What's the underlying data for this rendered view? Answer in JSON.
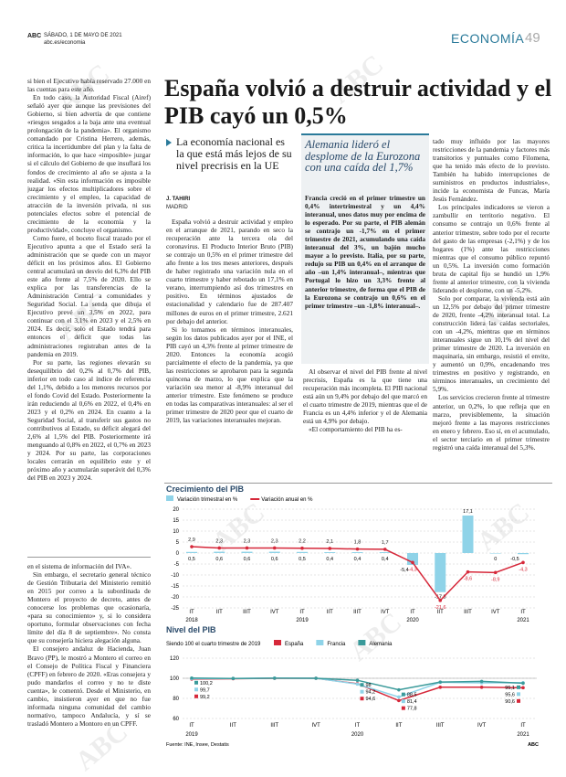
{
  "header": {
    "logo": "ABC",
    "date": "SÁBADO, 1 DE MAYO DE 2021",
    "url": "abc.es/economia",
    "section": "ECONOMÍA",
    "page": "49"
  },
  "watermark": "ABC",
  "sidebar_top": {
    "paragraphs": [
      "si bien el Ejecutivo había reservado 27.000 en las cuentas para este año.",
      "En todo caso, la Autoridad Fiscal (Airef) señaló ayer que aunque las previsiones del Gobierno, si bien advertía de que contiene «riesgos sesgados a la baja ante una eventual prolongación de la pandemia». El organismo comandado por Cristina Herrero, además, critica la incertidumbre del plan y la falta de información, lo que hace «imposible» juzgar si el cálculo del Gobierno de que insuflará los fondos de crecimiento al año se ajusta a la realidad. «Sin esta información es imposible juzgar los efectos multiplicadores sobre el crecimiento y el empleo, la capacidad de atracción de la inversión privada, ni sus potenciales efectos sobre el potencial de crecimiento de la economía y la productividad», concluye el organismo.",
      "Como fuere, el boceto fiscal trazado por el Ejecutivo apunta a que el Estado será la administración que se quede con un mayor déficit en los próximos años. El Gobierno central acumulará un desvío del 6,3% del PIB este año frente al 7,5% de 2020. Ello se explica por las transferencias de la Administración Central a comunidades y Seguridad Social. La senda que dibuja el Ejecutivo prevé un 3,5% en 2022, para continuar con el 3,1% en 2023 y el 2,5% en 2024. Es decir, solo el Estado tendrá para entonces el déficit que todas las administraciones registraban antes de la pandemia en 2019.",
      "Por su parte, las regiones elevarán su desequilibrio del 0,2% al 0,7% del PIB, inferior en todo caso al índice de referencia del 1,1%, debido a los menores recursos por el fondo Covid del Estado. Posteriormente la irán reduciendo al 0,6% en 2022, el 0,4% en 2023 y el 0,2% en 2024. En cuanto a la Seguridad Social, al transferir sus gastos no contributivos al Estado, su déficit alegará del 2,6% al 1,5% del PIB. Posteriormente irá menguando al 0,8% en 2022, el 0,7% en 2023 y 2024. Por su parte, las corporaciones locales cerrarán en equilibrio este y el próximo año y acumularán superávit del 0,3% del PIB en 2023 y 2024."
    ]
  },
  "sidebar_bottom": {
    "paragraphs": [
      "en el sistema de información del IVA».",
      "Sin embargo, el secretario general técnico de Gestión Tributaria del Ministerio remitió en 2015 por correo a la subordinada de Montero el proyecto de decreto, antes de conocerse los problemas que ocasionaría, «para su conocimiento» y, si lo considera oportuno, formular observaciones con fecha límite del día 8 de septiembre». No consta que su consejería hiciera alegación alguna.",
      "El consejero andaluz de Hacienda, Juan Bravo (PP), le mostró a Montero el correo en el Consejo de Política Fiscal y Financiera (CPFF) en febrero de 2020. «Eras consejera y pudo mandarlos el correo y no te diste cuenta», le comentó. Desde el Ministerio, en cambio, insistieron ayer en que no fue informada ninguna comunidad del cambio normativo, tampoco Andalucía, y sí se trasladó Montero a Montoro en un CPFF."
    ]
  },
  "article": {
    "headline": "España volvió a destruir actividad y el PIB cayó un 0,5%",
    "subheadline": "La economía nacional es la que está más lejos de su nivel precrisis en la UE",
    "author": "J. TAHIRI",
    "location": "MADRID",
    "columns": [
      [
        "España volvió a destruir actividad y empleo en el arranque de 2021, parando en seco la recuperación ante la tercera ola del coronavirus. El Producto Interior Bruto (PIB) se contrajo un 0,5% en el primer trimestre del año frente a los tres meses anteriores, después de haber registrado una variación nula en el cuarto trimestre y haber rebotado un 17,1% en verano, interrumpiendo así dos trimestres en positivo. En términos ajustados de estacionalidad y calendario fue de 287.407 millones de euros en el primer trimestre, 2.621 por debajo del anterior.",
        "Si lo tomamos en términos interanuales, según los datos publicados ayer por el INE, el PIB cayó un 4,3% frente al primer trimestre de 2020. Entonces la economía acogió parcialmente el efecto de la pandemia, ya que las restricciones se aprobaron para la segunda quincena de marzo, lo que explica que la variación sea menor al -8,9% interanual del anterior trimestre. Este fenómeno se produce en todas las comparativas interanuales: al ser el primer trimestre de 2020 peor que el cuarto de 2019, las variaciones interanuales mejoran."
      ],
      [
        "Al observar el nivel del PIB frente al nivel precrisis, España es la que tiene una recuperación más incompleta. El PIB nacional está aún un 9,4% por debajo del que marcó en el cuarto trimestre de 2019, mientras que el de Francia es un 4,4% inferior y el de Alemania está un 4,9% por debajo.",
        "«El comportamiento del PIB ha es-"
      ],
      [
        "tado muy influido por las mayores restricciones de la pandemia y factores más transitorios y puntuales como Filomena, que ha tenido más efecto de lo previsto. También ha habido interrupciones de suministros en productos industriales», incide la economista de Funcas, María Jesús Fernández.",
        "Los principales indicadores se vieron a zambullir en territorio negativo. El consumo se contrajo un 0,6% frente al anterior trimestre, sobre todo por el recorte del gasto de las empresas (-2,1%) y de los hogares (1%) ante las restricciones mientras que el consumo público repuntó un 0,5%. La inversión como formación bruta de capital fijo se hundió un 1,9% frente al anterior trimestre, con la vivienda liderando el desplome, con un -5,2%.",
        "Solo por comparar, la vivienda está aún un 12,5% por debajo del primer trimestre de 2020, frente -4,2% interanual total. La construcción lidera las caídas sectoriales, con un -4,2%, mientras que en términos interanuales sigue un 10,1% del nivel del primer trimestre de 2020. La inversión en maquinaria, sin embargo, resistió el envite, y aumentó un 0,9%, encadenando tres trimestres en positivo y registrando, en términos interanuales, un crecimiento del 5,9%.",
        "Los servicios crecieron frente al trimestre anterior, un 0,2%, lo que refleja que en marzo, previsiblemente, la situación mejoró frente a las mayores restricciones en enero y febrero. Eso sí, en el acumulado, el sector terciario en el primer trimestre registró una caída interanual del 5,3%."
      ]
    ]
  },
  "box": {
    "title": "Alemania lideró el desplome de la Eurozona con una caída del 1,7%",
    "text": "Francia creció en el primer trimestre un 0,4% intertrimestral y un 4,4% interanual, unos datos muy por encima de lo esperado. Por su parte, el PIB alemán se contrajo un -1,7% en el primer trimestre de 2021, acumulando una caída interanual del 3%, un bajón mucho mayor a lo previsto. Italia, por su parte, redujo su PIB un 0,4% en el arranque de año –un 1,4% interanual–, mientras que Portugal lo hizo un 3,3% frente al anterior trimestre, de forma que el PIB de la Eurozona se contrajo un 0,6% en el primer trimestre –un -1,8% interanual–."
  },
  "chart_data": [
    {
      "type": "combo",
      "title": "Crecimiento del PIB",
      "categories": [
        "IT",
        "IIT",
        "IIIT",
        "IVT",
        "IT",
        "IIT",
        "IIIT",
        "IVT",
        "IT",
        "IIT",
        "IIIT",
        "IVT",
        "IT"
      ],
      "year_labels": [
        "2018",
        null,
        null,
        null,
        "2019",
        null,
        null,
        null,
        "2020",
        null,
        null,
        null,
        "2021"
      ],
      "series": [
        {
          "name": "Variación trimestral en %",
          "type": "bar",
          "color": "#8fd3e8",
          "values": [
            0.5,
            0.6,
            0.6,
            0.6,
            0.5,
            0.4,
            0.4,
            0.4,
            -5.4,
            -17.8,
            17.1,
            0,
            -0.5
          ],
          "value_labels": [
            "0,5",
            "0,6",
            "0,6",
            "0,6",
            "0,5",
            "0,4",
            "0,4",
            "0,4",
            "-5,4",
            "-17,8",
            "17,1",
            "0",
            "-0,5"
          ]
        },
        {
          "name": "Variación anual en %",
          "type": "line",
          "color": "#d6283a",
          "values": [
            2.9,
            2.3,
            2.3,
            2.3,
            2.2,
            2.1,
            1.8,
            1.7,
            -4.3,
            -21.6,
            -8.6,
            -8.9,
            -4.3
          ],
          "value_labels": [
            "2,9",
            "2,3",
            "2,3",
            "2,3",
            "2,2",
            "2,1",
            "1,8",
            "1,7",
            "-4,3",
            "-21,6",
            "-8,6",
            "-8,9",
            "-4,3"
          ]
        }
      ],
      "ylim": [
        -25,
        20
      ],
      "yticks": [
        20,
        15,
        10,
        5,
        0,
        -5,
        -10,
        -15,
        -20,
        -25
      ],
      "grid": true
    },
    {
      "type": "line",
      "title": "Nivel del PIB",
      "subtitle": "Siendo 100 el cuarto trimestre de 2019",
      "categories": [
        "IT",
        "IIT",
        "IIIT",
        "IVT",
        "IT",
        "IIT",
        "IIIT",
        "IVT",
        "IT"
      ],
      "year_labels": [
        "2019",
        null,
        null,
        null,
        "2020",
        null,
        null,
        null,
        "2021"
      ],
      "series": [
        {
          "name": "España",
          "color": "#d6283a",
          "values": [
            99.2,
            99.6,
            100.0,
            100.0,
            94.6,
            77.8,
            91.1,
            91.1,
            90.6
          ],
          "value_labels": [
            "99,2",
            null,
            null,
            null,
            "94,6",
            "77,8",
            null,
            null,
            "90,6"
          ]
        },
        {
          "name": "Francia",
          "color": "#8fd3e8",
          "values": [
            99.7,
            99.8,
            100.2,
            100.0,
            94.2,
            81.4,
            96.0,
            95.5,
            95.6
          ],
          "value_labels": [
            "99,7",
            null,
            null,
            null,
            "94,2",
            "81,4",
            null,
            null,
            "95,6"
          ]
        },
        {
          "name": "Alemania",
          "color": "#3a9a9a",
          "values": [
            100.2,
            99.8,
            100.1,
            100.0,
            98,
            88.5,
            96.2,
            96.9,
            95.1
          ],
          "value_labels": [
            "100,2",
            null,
            null,
            null,
            "98",
            "88,5",
            null,
            null,
            "95,1"
          ]
        }
      ],
      "ylim": [
        60,
        120
      ],
      "yticks": [
        60,
        80,
        100,
        120
      ],
      "grid": true
    }
  ],
  "source": "Fuente: INE, Insee, Destatis",
  "footer_logo": "ABC"
}
